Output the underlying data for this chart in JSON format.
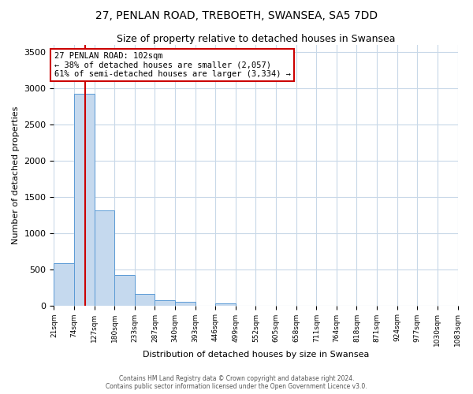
{
  "title": "27, PENLAN ROAD, TREBOETH, SWANSEA, SA5 7DD",
  "subtitle": "Size of property relative to detached houses in Swansea",
  "xlabel": "Distribution of detached houses by size in Swansea",
  "ylabel": "Number of detached properties",
  "bin_labels": [
    "21sqm",
    "74sqm",
    "127sqm",
    "180sqm",
    "233sqm",
    "287sqm",
    "340sqm",
    "393sqm",
    "446sqm",
    "499sqm",
    "552sqm",
    "605sqm",
    "658sqm",
    "711sqm",
    "764sqm",
    "818sqm",
    "871sqm",
    "924sqm",
    "977sqm",
    "1030sqm",
    "1083sqm"
  ],
  "bar_values": [
    580,
    2920,
    1310,
    420,
    160,
    70,
    50,
    0,
    30,
    0,
    0,
    0,
    0,
    0,
    0,
    0,
    0,
    0,
    0,
    0
  ],
  "bar_color": "#c5d9ee",
  "bar_edge_color": "#5b9bd5",
  "vline_x": 1.53,
  "vline_color": "#cc0000",
  "annotation_text": "27 PENLAN ROAD: 102sqm\n← 38% of detached houses are smaller (2,057)\n61% of semi-detached houses are larger (3,334) →",
  "annotation_box_color": "#ffffff",
  "annotation_box_edge": "#cc0000",
  "ylim": [
    0,
    3600
  ],
  "yticks": [
    0,
    500,
    1000,
    1500,
    2000,
    2500,
    3000,
    3500
  ],
  "footer_line1": "Contains HM Land Registry data © Crown copyright and database right 2024.",
  "footer_line2": "Contains public sector information licensed under the Open Government Licence v3.0.",
  "background_color": "#ffffff",
  "grid_color": "#c8d8e8",
  "title_fontsize": 10,
  "subtitle_fontsize": 9
}
